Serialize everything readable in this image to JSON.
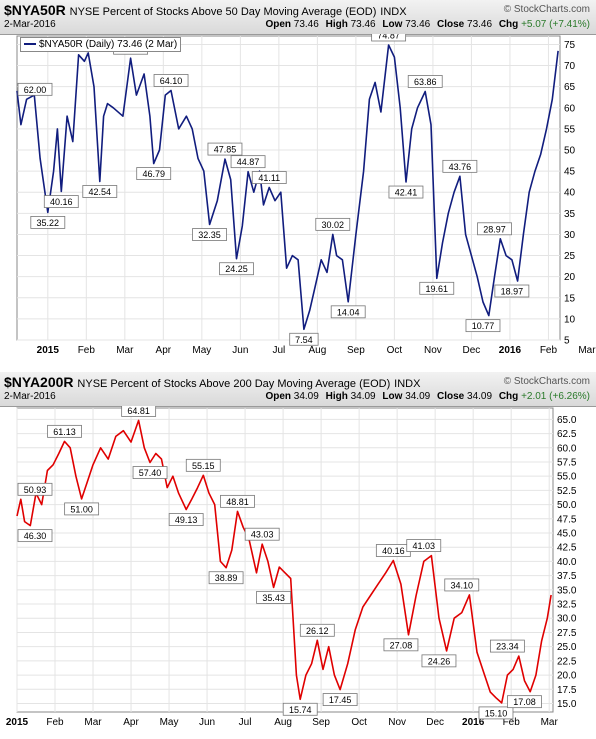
{
  "top": {
    "symbol": "$NYA50R",
    "description": "NYSE Percent of Stocks Above 50 Day Moving Average (EOD)",
    "exchange": "INDX",
    "source": "© StockCharts.com",
    "date": "2-Mar-2016",
    "open_label": "Open",
    "open": "73.46",
    "high_label": "High",
    "high": "73.46",
    "low_label": "Low",
    "low": "73.46",
    "close_label": "Close",
    "close": "73.46",
    "chg_label": "Chg",
    "chg": "+5.07 (+7.41%)",
    "legend": "$NYA50R (Daily) 73.46 (2 Mar)"
  },
  "bottom": {
    "symbol": "$NYA200R",
    "description": "NYSE Percent of Stocks Above 200 Day Moving Average (EOD)",
    "exchange": "INDX",
    "source": "© StockCharts.com",
    "date": "2-Mar-2016",
    "open_label": "Open",
    "open": "34.09",
    "high_label": "High",
    "high": "34.09",
    "low_label": "Low",
    "low": "34.09",
    "close_label": "Close",
    "close": "34.09",
    "chg_label": "Chg",
    "chg": "+2.01 (+6.26%)"
  },
  "colors": {
    "top_line": "#111d7e",
    "bottom_line": "#e00000",
    "grid": "#e4e4e4",
    "background": "#ffffff"
  },
  "chart_data": [
    {
      "type": "line",
      "title": "$NYA50R NYSE Percent of Stocks Above 50 Day Moving Average (EOD)",
      "ylim": [
        5,
        77
      ],
      "yticks": [
        5,
        10,
        15,
        20,
        25,
        30,
        35,
        40,
        45,
        50,
        55,
        60,
        65,
        70,
        75
      ],
      "xlim": [
        0,
        14.1
      ],
      "xticks": [
        {
          "label": "2015",
          "x": 0.8,
          "bold": true
        },
        {
          "label": "Feb",
          "x": 1.8
        },
        {
          "label": "Mar",
          "x": 2.8
        },
        {
          "label": "Apr",
          "x": 3.8
        },
        {
          "label": "May",
          "x": 4.8
        },
        {
          "label": "Jun",
          "x": 5.8
        },
        {
          "label": "Jul",
          "x": 6.8
        },
        {
          "label": "Aug",
          "x": 7.8
        },
        {
          "label": "Sep",
          "x": 8.8
        },
        {
          "label": "Oct",
          "x": 9.8
        },
        {
          "label": "Nov",
          "x": 10.8
        },
        {
          "label": "Dec",
          "x": 11.8
        },
        {
          "label": "2016",
          "x": 12.8,
          "bold": true
        },
        {
          "label": "Feb",
          "x": 13.8
        },
        {
          "label": "Mar",
          "x": 14.8
        }
      ],
      "series": [
        {
          "name": "$NYA50R (Daily)",
          "x": [
            0.0,
            0.1,
            0.25,
            0.45,
            0.6,
            0.8,
            0.95,
            1.05,
            1.15,
            1.3,
            1.45,
            1.6,
            1.75,
            1.85,
            2.0,
            2.15,
            2.25,
            2.35,
            2.5,
            2.75,
            2.95,
            3.1,
            3.3,
            3.45,
            3.55,
            3.7,
            3.85,
            4.0,
            4.2,
            4.4,
            4.55,
            4.7,
            4.85,
            5.0,
            5.2,
            5.4,
            5.55,
            5.7,
            5.85,
            6.0,
            6.15,
            6.3,
            6.4,
            6.55,
            6.7,
            6.85,
            7.0,
            7.15,
            7.3,
            7.45,
            7.6,
            7.75,
            7.9,
            8.05,
            8.2,
            8.3,
            8.45,
            8.6,
            8.8,
            9.0,
            9.15,
            9.3,
            9.45,
            9.65,
            9.8,
            9.95,
            10.1,
            10.25,
            10.4,
            10.6,
            10.75,
            10.9,
            11.05,
            11.2,
            11.35,
            11.5,
            11.65,
            11.8,
            11.95,
            12.1,
            12.25,
            12.4,
            12.55,
            12.7,
            12.85,
            13.0,
            13.15,
            13.3,
            13.45,
            13.6,
            13.75,
            13.9,
            14.05
          ],
          "values": [
            64,
            56,
            62.0,
            63,
            48,
            35.22,
            45,
            55,
            40.16,
            58,
            52,
            72.55,
            71,
            73,
            65,
            42.54,
            58,
            61,
            60,
            58,
            71.74,
            63,
            68,
            58,
            46.79,
            50,
            63,
            64.1,
            55,
            58,
            55,
            48,
            45,
            32.35,
            38,
            47.85,
            43,
            24.25,
            32,
            44.87,
            40,
            45,
            37,
            41.11,
            38,
            40,
            22,
            25,
            24,
            7.54,
            12,
            18,
            24,
            21,
            30.02,
            25,
            24,
            14.04,
            30,
            45,
            62,
            66,
            59,
            74.87,
            72,
            60,
            42.41,
            55,
            60,
            63.86,
            56,
            19.61,
            28,
            35,
            40,
            43.76,
            30,
            25,
            20,
            14,
            10.77,
            20,
            28.97,
            25,
            24,
            18.97,
            30,
            40,
            45,
            49,
            55,
            62,
            73.46
          ]
        }
      ],
      "annotations": [
        {
          "x": 0.25,
          "y": 62.0,
          "text": "62.00",
          "pos": "above"
        },
        {
          "x": 0.8,
          "y": 35.22,
          "text": "35.22",
          "pos": "below"
        },
        {
          "x": 1.15,
          "y": 40.16,
          "text": "40.16",
          "pos": "below"
        },
        {
          "x": 1.6,
          "y": 72.55,
          "text": "72.55",
          "pos": "above"
        },
        {
          "x": 2.15,
          "y": 42.54,
          "text": "42.54",
          "pos": "below"
        },
        {
          "x": 2.95,
          "y": 71.74,
          "text": "71.74",
          "pos": "above"
        },
        {
          "x": 3.55,
          "y": 46.79,
          "text": "46.79",
          "pos": "below"
        },
        {
          "x": 4.0,
          "y": 64.1,
          "text": "64.10",
          "pos": "above"
        },
        {
          "x": 5.0,
          "y": 32.35,
          "text": "32.35",
          "pos": "below"
        },
        {
          "x": 5.4,
          "y": 47.85,
          "text": "47.85",
          "pos": "above"
        },
        {
          "x": 5.7,
          "y": 24.25,
          "text": "24.25",
          "pos": "below"
        },
        {
          "x": 6.0,
          "y": 44.87,
          "text": "44.87",
          "pos": "above"
        },
        {
          "x": 6.55,
          "y": 41.11,
          "text": "41.11",
          "pos": "above"
        },
        {
          "x": 7.45,
          "y": 7.54,
          "text": "7.54",
          "pos": "below"
        },
        {
          "x": 8.2,
          "y": 30.02,
          "text": "30.02",
          "pos": "above"
        },
        {
          "x": 8.6,
          "y": 14.04,
          "text": "14.04",
          "pos": "below"
        },
        {
          "x": 9.65,
          "y": 74.87,
          "text": "74.87",
          "pos": "above"
        },
        {
          "x": 10.1,
          "y": 42.41,
          "text": "42.41",
          "pos": "below"
        },
        {
          "x": 10.6,
          "y": 63.86,
          "text": "63.86",
          "pos": "above"
        },
        {
          "x": 10.9,
          "y": 19.61,
          "text": "19.61",
          "pos": "below"
        },
        {
          "x": 11.5,
          "y": 43.76,
          "text": "43.76",
          "pos": "above"
        },
        {
          "x": 12.1,
          "y": 10.77,
          "text": "10.77",
          "pos": "below"
        },
        {
          "x": 12.4,
          "y": 28.97,
          "text": "28.97",
          "pos": "above"
        },
        {
          "x": 12.85,
          "y": 18.97,
          "text": "18.97",
          "pos": "below"
        }
      ],
      "grid": true
    },
    {
      "type": "line",
      "title": "$NYA200R NYSE Percent of Stocks Above 200 Day Moving Average (EOD)",
      "ylim": [
        13.5,
        67
      ],
      "yticks": [
        15.0,
        17.5,
        20.0,
        22.5,
        25.0,
        27.5,
        30.0,
        32.5,
        35.0,
        37.5,
        40.0,
        42.5,
        45.0,
        47.5,
        50.0,
        52.5,
        55.0,
        57.5,
        60.0,
        62.5,
        65.0
      ],
      "xlim": [
        0,
        14.1
      ],
      "xticks": [
        {
          "label": "2015",
          "x": 0.0,
          "bold": true
        },
        {
          "label": "Feb",
          "x": 1.0
        },
        {
          "label": "Mar",
          "x": 2.0
        },
        {
          "label": "Apr",
          "x": 3.0
        },
        {
          "label": "May",
          "x": 4.0
        },
        {
          "label": "Jun",
          "x": 5.0
        },
        {
          "label": "Jul",
          "x": 6.0
        },
        {
          "label": "Aug",
          "x": 7.0
        },
        {
          "label": "Sep",
          "x": 8.0
        },
        {
          "label": "Oct",
          "x": 9.0
        },
        {
          "label": "Nov",
          "x": 10.0
        },
        {
          "label": "Dec",
          "x": 11.0
        },
        {
          "label": "2016",
          "x": 12.0,
          "bold": true
        },
        {
          "label": "Feb",
          "x": 13.0
        },
        {
          "label": "Mar",
          "x": 14.0
        }
      ],
      "series": [
        {
          "name": "$NYA200R",
          "x": [
            0.0,
            0.1,
            0.2,
            0.35,
            0.5,
            0.65,
            0.8,
            0.95,
            1.1,
            1.25,
            1.4,
            1.55,
            1.7,
            1.85,
            2.0,
            2.2,
            2.4,
            2.6,
            2.8,
            3.0,
            3.2,
            3.35,
            3.5,
            3.65,
            3.8,
            3.95,
            4.1,
            4.25,
            4.45,
            4.6,
            4.75,
            4.9,
            5.05,
            5.2,
            5.35,
            5.5,
            5.65,
            5.8,
            5.95,
            6.1,
            6.3,
            6.45,
            6.6,
            6.75,
            6.9,
            7.05,
            7.2,
            7.35,
            7.45,
            7.6,
            7.75,
            7.9,
            8.05,
            8.2,
            8.35,
            8.5,
            8.7,
            8.9,
            9.1,
            9.3,
            9.5,
            9.7,
            9.9,
            10.1,
            10.3,
            10.5,
            10.7,
            10.9,
            11.1,
            11.3,
            11.5,
            11.7,
            11.9,
            12.1,
            12.3,
            12.45,
            12.6,
            12.75,
            12.9,
            13.05,
            13.2,
            13.35,
            13.5,
            13.65,
            13.8,
            13.95,
            14.05
          ],
          "values": [
            48,
            50.93,
            47,
            46.3,
            52,
            50,
            56,
            57,
            59,
            61.13,
            60,
            55,
            51.0,
            54,
            57,
            60,
            58,
            62,
            63,
            61,
            64.81,
            60,
            57.4,
            59,
            58,
            53,
            55,
            52,
            49.13,
            51,
            53,
            55.15,
            52,
            50,
            40,
            38.89,
            42,
            48.81,
            46,
            44,
            38,
            43.03,
            40,
            35.43,
            39,
            38,
            37,
            20,
            15.74,
            20,
            22,
            26.12,
            21,
            25,
            20,
            17.45,
            22,
            28,
            32,
            34,
            36,
            38,
            40.16,
            36,
            27.08,
            34,
            40,
            41.03,
            30,
            24.26,
            30,
            31,
            34.1,
            24,
            20,
            17,
            16,
            15.1,
            20,
            21,
            23.34,
            19,
            17.08,
            20,
            26,
            30,
            34.09
          ]
        }
      ],
      "annotations": [
        {
          "x": 0.1,
          "y": 50.93,
          "text": "50.93",
          "pos": "above"
        },
        {
          "x": 0.35,
          "y": 46.3,
          "text": "46.30",
          "pos": "below"
        },
        {
          "x": 1.25,
          "y": 61.13,
          "text": "61.13",
          "pos": "above"
        },
        {
          "x": 1.7,
          "y": 51.0,
          "text": "51.00",
          "pos": "below"
        },
        {
          "x": 3.2,
          "y": 64.81,
          "text": "64.81",
          "pos": "above"
        },
        {
          "x": 3.5,
          "y": 57.4,
          "text": "57.40",
          "pos": "below"
        },
        {
          "x": 4.45,
          "y": 49.13,
          "text": "49.13",
          "pos": "below"
        },
        {
          "x": 4.9,
          "y": 55.15,
          "text": "55.15",
          "pos": "above"
        },
        {
          "x": 5.5,
          "y": 38.89,
          "text": "38.89",
          "pos": "below"
        },
        {
          "x": 5.8,
          "y": 48.81,
          "text": "48.81",
          "pos": "above"
        },
        {
          "x": 6.45,
          "y": 43.03,
          "text": "43.03",
          "pos": "above"
        },
        {
          "x": 6.75,
          "y": 35.43,
          "text": "35.43",
          "pos": "below"
        },
        {
          "x": 7.45,
          "y": 15.74,
          "text": "15.74",
          "pos": "below"
        },
        {
          "x": 7.9,
          "y": 26.12,
          "text": "26.12",
          "pos": "above"
        },
        {
          "x": 8.5,
          "y": 17.45,
          "text": "17.45",
          "pos": "below"
        },
        {
          "x": 9.9,
          "y": 40.16,
          "text": "40.16",
          "pos": "above"
        },
        {
          "x": 10.1,
          "y": 27.08,
          "text": "27.08",
          "pos": "below"
        },
        {
          "x": 10.7,
          "y": 41.03,
          "text": "41.03",
          "pos": "above"
        },
        {
          "x": 11.1,
          "y": 24.26,
          "text": "24.26",
          "pos": "below"
        },
        {
          "x": 11.7,
          "y": 34.1,
          "text": "34.10",
          "pos": "above"
        },
        {
          "x": 12.6,
          "y": 15.1,
          "text": "15.10",
          "pos": "below"
        },
        {
          "x": 12.9,
          "y": 23.34,
          "text": "23.34",
          "pos": "above"
        },
        {
          "x": 13.35,
          "y": 17.08,
          "text": "17.08",
          "pos": "below"
        }
      ],
      "grid": true
    }
  ]
}
